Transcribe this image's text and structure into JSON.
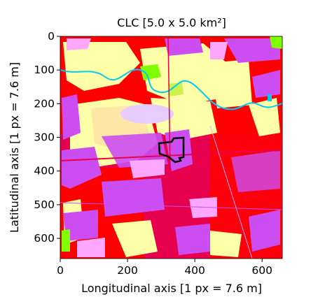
{
  "title": "CLC  [5.0 x 5.0 km²]",
  "xaxis": {
    "label": "Longitudinal axis [1 px = 7.6 m]",
    "ticks": [
      0,
      200,
      400,
      600
    ],
    "range": [
      0,
      660
    ]
  },
  "yaxis": {
    "label": "Latitudinal axis [1 px = 7.6 m]",
    "ticks": [
      0,
      100,
      200,
      300,
      400,
      500,
      600
    ],
    "range": [
      0,
      660
    ],
    "inverted": true
  },
  "colors": {
    "continuous_urban": "#e6004d",
    "discontinuous_urban": "#ff0000",
    "industrial_commercial": "#cc4df2",
    "green_urban": "#ffa6ff",
    "sport_leisure": "#ffe6ff",
    "arable": "#ffffa8",
    "pasture": "#e6e64d",
    "heterogeneous_agri": "#ffe6a6",
    "grassland": "#ccf24d",
    "forest": "#80ff00",
    "water": "#00ccf2",
    "mineral_extraction": "#e6ccff",
    "highlight": "#000000"
  }
}
